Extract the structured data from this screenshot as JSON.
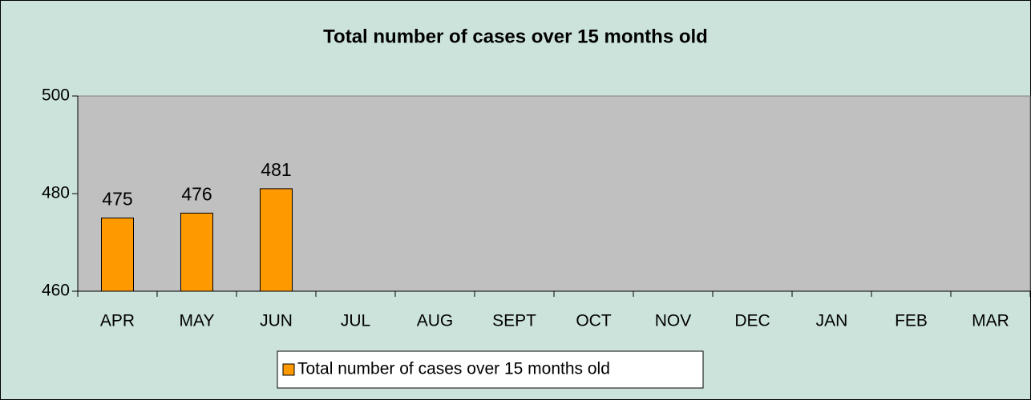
{
  "chart_data": {
    "type": "bar",
    "title": "Total number of cases over 15 months old",
    "categories": [
      "APR",
      "MAY",
      "JUN",
      "JUL",
      "AUG",
      "SEPT",
      "OCT",
      "NOV",
      "DEC",
      "JAN",
      "FEB",
      "MAR"
    ],
    "series": [
      {
        "name": "Total number of cases over 15 months old",
        "color": "#ff9900",
        "values": [
          475,
          476,
          481,
          null,
          null,
          null,
          null,
          null,
          null,
          null,
          null,
          null
        ]
      }
    ],
    "ylim": [
      460,
      500
    ],
    "yticks": [
      460,
      480,
      500
    ],
    "grid": false,
    "legend": "bottom"
  }
}
